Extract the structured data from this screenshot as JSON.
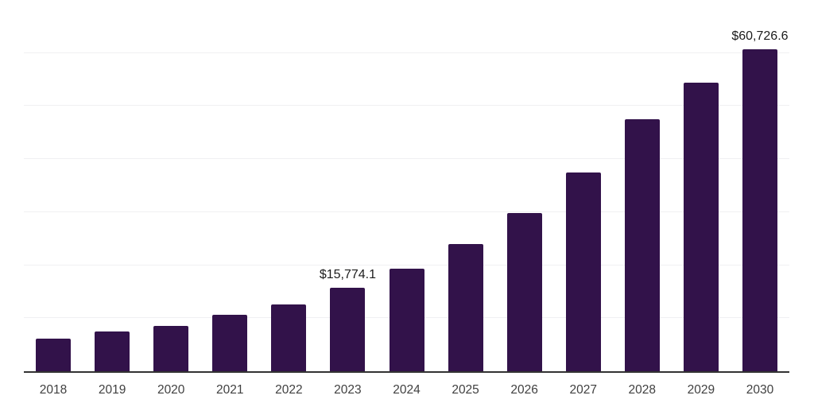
{
  "chart_data": {
    "type": "bar",
    "title": "",
    "xlabel": "",
    "ylabel": "",
    "categories": [
      "2018",
      "2019",
      "2020",
      "2021",
      "2022",
      "2023",
      "2024",
      "2025",
      "2026",
      "2027",
      "2028",
      "2029",
      "2030"
    ],
    "values": [
      6100,
      7450,
      8600,
      10600,
      12650,
      15774.1,
      19300,
      24000,
      29800,
      37500,
      47450,
      54450,
      60726.6
    ],
    "data_labels": [
      "",
      "",
      "",
      "",
      "",
      "$15,774.1",
      "",
      "",
      "",
      "",
      "",
      "",
      "$60,726.6"
    ],
    "ylim": [
      0,
      70000
    ],
    "gridline_interval": 10000,
    "grid": true,
    "legend": false,
    "colors": {
      "bar": "#32124a",
      "gridline": "#f0f0f2",
      "axis": "#333333",
      "tick_label": "#404040",
      "data_label": "#1c1c1c",
      "background": "#ffffff"
    }
  }
}
